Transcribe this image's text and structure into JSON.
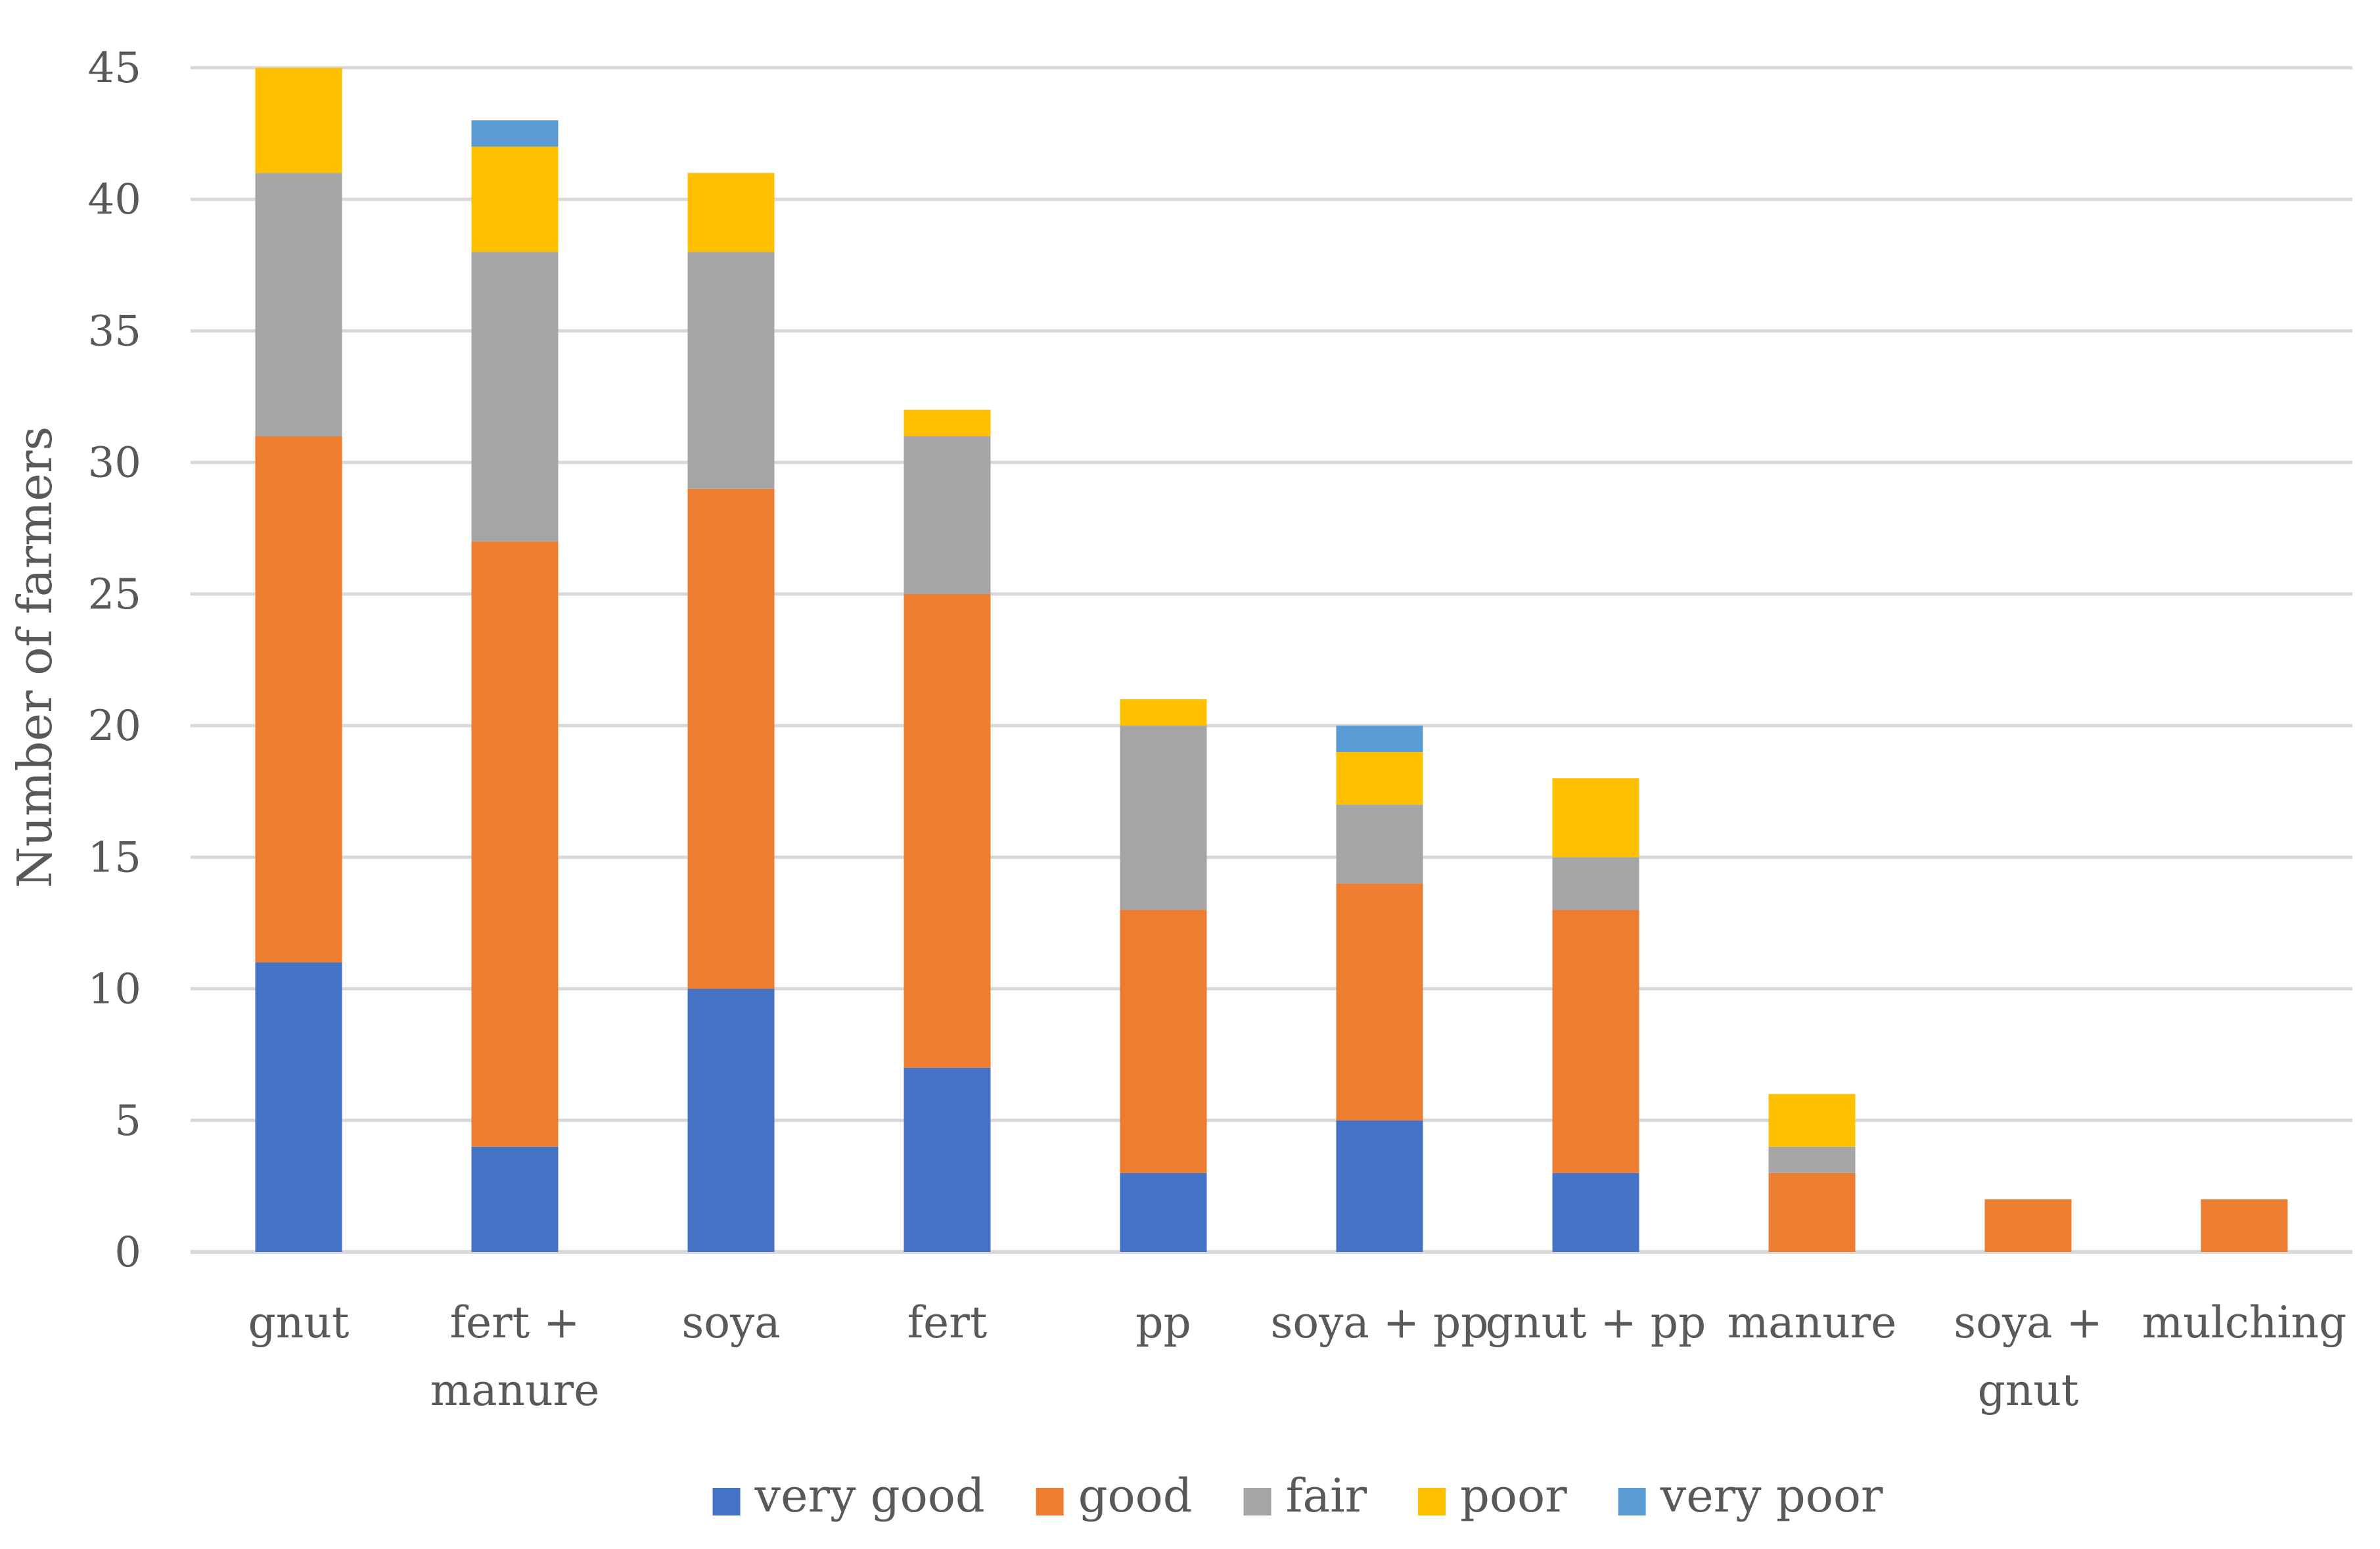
{
  "chart_data": {
    "type": "bar",
    "stacked": true,
    "title": "",
    "xlabel": "",
    "ylabel": "Number of farmers",
    "ylim": [
      0,
      45
    ],
    "yticks": [
      0,
      5,
      10,
      15,
      20,
      25,
      30,
      35,
      40,
      45
    ],
    "grid": true,
    "legend_position": "bottom",
    "categories": [
      [
        "gnut"
      ],
      [
        "fert +",
        "manure"
      ],
      [
        "soya"
      ],
      [
        "fert"
      ],
      [
        "pp"
      ],
      [
        "soya + pp"
      ],
      [
        "gnut + pp"
      ],
      [
        "manure"
      ],
      [
        "soya +",
        "gnut"
      ],
      [
        "mulching"
      ]
    ],
    "series": [
      {
        "name": "very good",
        "color": "#4472C4",
        "values": [
          11,
          4,
          10,
          7,
          3,
          5,
          3,
          0,
          0,
          0
        ]
      },
      {
        "name": "good",
        "color": "#ED7D31",
        "values": [
          20,
          23,
          19,
          18,
          10,
          9,
          10,
          3,
          2,
          2
        ]
      },
      {
        "name": "fair",
        "color": "#A5A5A5",
        "values": [
          10,
          11,
          9,
          6,
          7,
          3,
          2,
          1,
          0,
          0
        ]
      },
      {
        "name": "poor",
        "color": "#FFC000",
        "values": [
          4,
          4,
          3,
          1,
          1,
          2,
          3,
          2,
          0,
          0
        ]
      },
      {
        "name": "very poor",
        "color": "#5B9BD5",
        "values": [
          0,
          1,
          0,
          0,
          0,
          1,
          0,
          0,
          0,
          0
        ]
      }
    ]
  }
}
